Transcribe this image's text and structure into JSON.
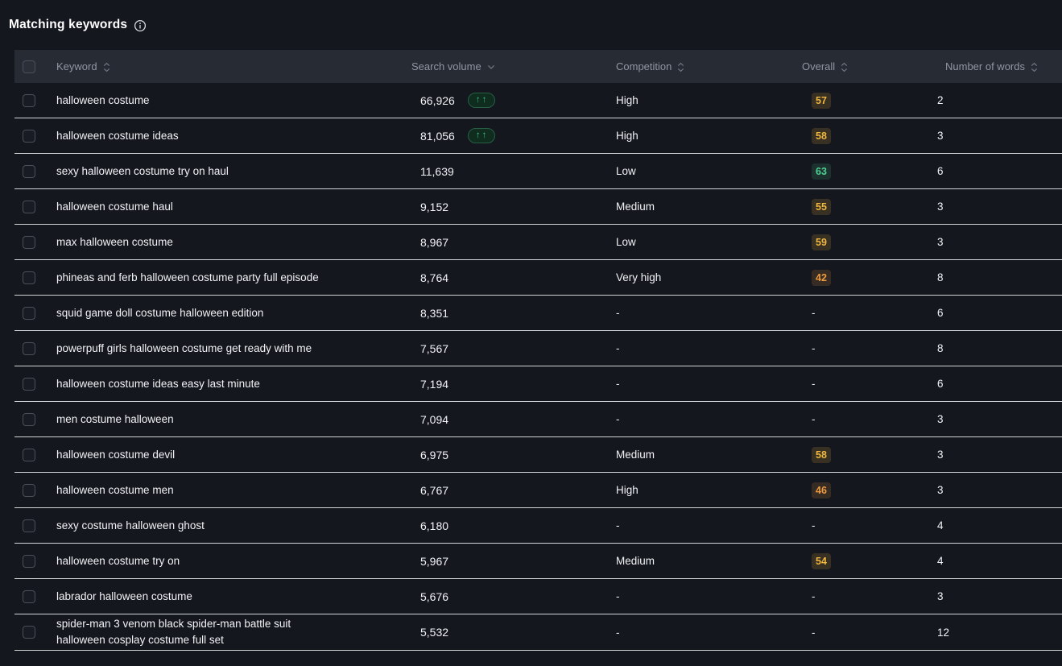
{
  "title": "Matching keywords",
  "icons": {
    "title_info": "info-circle-icon"
  },
  "colors": {
    "background": "#15171e",
    "header_background": "#272b34",
    "row_divider": "#ffffff",
    "badge_yellow": "#eeb63f",
    "badge_orange": "#ee9b3f",
    "badge_green": "#4ed092",
    "trend_green": "#3bbd82"
  },
  "table": {
    "trend_badge_text": "↑↑",
    "columns": [
      {
        "id": "keyword",
        "label": "Keyword",
        "sort_icon": "sort-both-icon"
      },
      {
        "id": "search_volume",
        "label": "Search volume",
        "sort_icon": "chevron-down-icon"
      },
      {
        "id": "competition",
        "label": "Competition",
        "sort_icon": "sort-both-icon"
      },
      {
        "id": "overall",
        "label": "Overall",
        "sort_icon": "sort-both-icon"
      },
      {
        "id": "words",
        "label": "Number of words",
        "sort_icon": "sort-both-icon"
      }
    ],
    "rows": [
      {
        "keyword": "halloween costume",
        "search_volume": "66,926",
        "trend": true,
        "competition": "High",
        "overall": "57",
        "overall_tone": "yellow",
        "number_of_words": "2"
      },
      {
        "keyword": "halloween costume ideas",
        "search_volume": "81,056",
        "trend": true,
        "competition": "High",
        "overall": "58",
        "overall_tone": "yellow",
        "number_of_words": "3"
      },
      {
        "keyword": "sexy halloween costume try on haul",
        "search_volume": "11,639",
        "trend": false,
        "competition": "Low",
        "overall": "63",
        "overall_tone": "green",
        "number_of_words": "6"
      },
      {
        "keyword": "halloween costume haul",
        "search_volume": "9,152",
        "trend": false,
        "competition": "Medium",
        "overall": "55",
        "overall_tone": "yellow",
        "number_of_words": "3"
      },
      {
        "keyword": "max halloween costume",
        "search_volume": "8,967",
        "trend": false,
        "competition": "Low",
        "overall": "59",
        "overall_tone": "yellow",
        "number_of_words": "3"
      },
      {
        "keyword": "phineas and ferb halloween costume party full episode",
        "search_volume": "8,764",
        "trend": false,
        "competition": "Very high",
        "overall": "42",
        "overall_tone": "orange",
        "number_of_words": "8"
      },
      {
        "keyword": "squid game doll costume halloween edition",
        "search_volume": "8,351",
        "trend": false,
        "competition": "-",
        "overall": "-",
        "overall_tone": null,
        "number_of_words": "6"
      },
      {
        "keyword": "powerpuff girls halloween costume get ready with me",
        "search_volume": "7,567",
        "trend": false,
        "competition": "-",
        "overall": "-",
        "overall_tone": null,
        "number_of_words": "8"
      },
      {
        "keyword": "halloween costume ideas easy last minute",
        "search_volume": "7,194",
        "trend": false,
        "competition": "-",
        "overall": "-",
        "overall_tone": null,
        "number_of_words": "6"
      },
      {
        "keyword": "men costume halloween",
        "search_volume": "7,094",
        "trend": false,
        "competition": "-",
        "overall": "-",
        "overall_tone": null,
        "number_of_words": "3"
      },
      {
        "keyword": "halloween costume devil",
        "search_volume": "6,975",
        "trend": false,
        "competition": "Medium",
        "overall": "58",
        "overall_tone": "yellow",
        "number_of_words": "3"
      },
      {
        "keyword": "halloween costume men",
        "search_volume": "6,767",
        "trend": false,
        "competition": "High",
        "overall": "46",
        "overall_tone": "orange",
        "number_of_words": "3"
      },
      {
        "keyword": "sexy costume halloween ghost",
        "search_volume": "6,180",
        "trend": false,
        "competition": "-",
        "overall": "-",
        "overall_tone": null,
        "number_of_words": "4"
      },
      {
        "keyword": "halloween costume try on",
        "search_volume": "5,967",
        "trend": false,
        "competition": "Medium",
        "overall": "54",
        "overall_tone": "yellow",
        "number_of_words": "4"
      },
      {
        "keyword": "labrador halloween costume",
        "search_volume": "5,676",
        "trend": false,
        "competition": "-",
        "overall": "-",
        "overall_tone": null,
        "number_of_words": "3"
      },
      {
        "keyword": "spider-man 3 venom black spider-man battle suit halloween cosplay costume full set",
        "search_volume": "5,532",
        "trend": false,
        "competition": "-",
        "overall": "-",
        "overall_tone": null,
        "number_of_words": "12"
      }
    ]
  }
}
